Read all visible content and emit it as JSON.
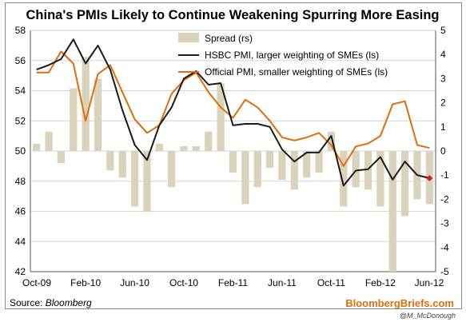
{
  "chart_data": {
    "type": "bar+line",
    "title": "China's PMIs Likely to Continue Weakening Spurring More Easing",
    "source_label": "Source:",
    "source_name": "Bloomberg",
    "brand": "BloombergBriefs.com",
    "handle": "@M_McDonough",
    "x_tick_labels": [
      "Oct-09",
      "Feb-10",
      "Jun-10",
      "Oct-10",
      "Feb-11",
      "Jun-11",
      "Oct-11",
      "Feb-12",
      "Jun-12"
    ],
    "months": [
      "Oct-09",
      "Nov-09",
      "Dec-09",
      "Jan-10",
      "Feb-10",
      "Mar-10",
      "Apr-10",
      "May-10",
      "Jun-10",
      "Jul-10",
      "Aug-10",
      "Sep-10",
      "Oct-10",
      "Nov-10",
      "Dec-10",
      "Jan-11",
      "Feb-11",
      "Mar-11",
      "Apr-11",
      "May-11",
      "Jun-11",
      "Jul-11",
      "Aug-11",
      "Sep-11",
      "Oct-11",
      "Nov-11",
      "Dec-11",
      "Jan-12",
      "Feb-12",
      "Mar-12",
      "Apr-12",
      "May-12",
      "Jun-12"
    ],
    "left_axis": {
      "min": 42,
      "max": 58,
      "ticks": [
        42,
        44,
        46,
        48,
        50,
        52,
        54,
        56,
        58
      ]
    },
    "right_axis": {
      "min": -5,
      "max": 5,
      "ticks": [
        -5,
        -4,
        -3,
        -2,
        -1,
        0,
        1,
        2,
        3,
        4,
        5
      ]
    },
    "colors": {
      "spread": "#d9d3bc",
      "hsbc": "#1a1a1a",
      "official": "#e36c0a",
      "marker": "#cc2222",
      "grid": "#d6d6d6"
    },
    "legend_position": "top-right",
    "series": [
      {
        "name": "Spread (rs)",
        "axis": "right",
        "kind": "bar",
        "values": [
          0.3,
          0.8,
          -0.5,
          2.6,
          3.9,
          3.0,
          -0.8,
          -1.1,
          -2.3,
          -2.5,
          0.3,
          -1.5,
          0.2,
          0.2,
          0.8,
          2.8,
          -0.9,
          -2.2,
          -1.5,
          -0.7,
          -1.2,
          -1.6,
          -1.1,
          -0.9,
          0.8,
          -2.3,
          -1.5,
          -1.6,
          -2.3,
          -5.0,
          -2.7,
          -2.0,
          -2.2
        ]
      },
      {
        "name": "HSBC PMI, larger weighting of SMEs (ls)",
        "axis": "left",
        "kind": "line",
        "values": [
          55.4,
          55.7,
          56.1,
          57.4,
          55.8,
          57.0,
          55.4,
          52.7,
          50.4,
          49.4,
          51.7,
          52.9,
          54.8,
          55.3,
          54.4,
          54.5,
          51.7,
          51.8,
          51.8,
          51.6,
          50.1,
          49.3,
          49.9,
          49.9,
          51.0,
          47.7,
          48.7,
          48.8,
          49.6,
          48.1,
          49.3,
          48.4,
          48.2
        ]
      },
      {
        "name": "Official PMI, smaller weighting of SMEs (ls)",
        "axis": "left",
        "kind": "line",
        "values": [
          55.2,
          55.2,
          56.6,
          55.8,
          52.0,
          55.1,
          55.7,
          53.9,
          52.1,
          51.2,
          51.7,
          53.8,
          54.7,
          55.2,
          53.9,
          52.9,
          52.2,
          53.4,
          52.9,
          52.0,
          50.9,
          50.7,
          50.9,
          51.2,
          50.4,
          49.0,
          50.3,
          50.5,
          51.0,
          53.1,
          53.3,
          50.4,
          50.2
        ]
      }
    ],
    "last_point_marker": {
      "series": "HSBC PMI, larger weighting of SMEs (ls)",
      "month": "Jun-12",
      "value": 48.2
    }
  }
}
